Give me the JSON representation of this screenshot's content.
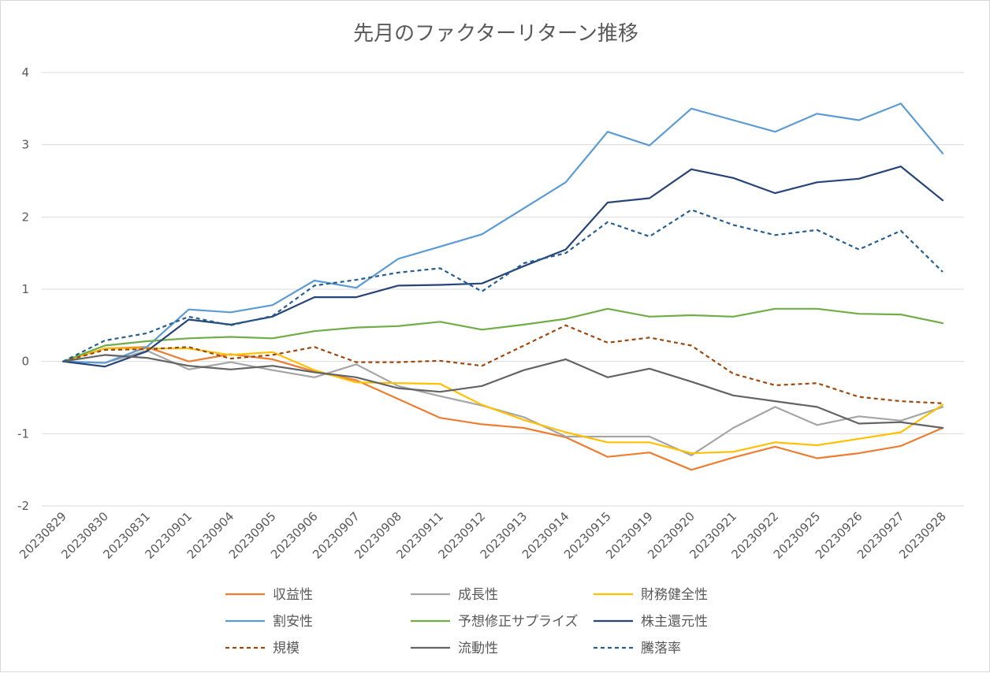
{
  "chart_data": {
    "type": "line",
    "title": "先月のファクターリターン推移",
    "xlabel": "",
    "ylabel": "",
    "ylim": [
      -2,
      4
    ],
    "yticks": [
      "-2",
      "-1",
      "0",
      "1",
      "2",
      "3",
      "4"
    ],
    "grid": true,
    "legend_position": "bottom",
    "categories": [
      "20230829",
      "20230830",
      "20230831",
      "20230901",
      "20230904",
      "20230905",
      "20230906",
      "20230907",
      "20230908",
      "20230911",
      "20230912",
      "20230913",
      "20230914",
      "20230915",
      "20230919",
      "20230920",
      "20230921",
      "20230922",
      "20230925",
      "20230926",
      "20230927",
      "20230928"
    ],
    "series": [
      {
        "name": "収益性",
        "color": "#ED7D31",
        "dash": "solid",
        "values": [
          0,
          0.18,
          0.2,
          0.0,
          0.1,
          0.03,
          -0.14,
          -0.26,
          -0.52,
          -0.78,
          -0.87,
          -0.92,
          -1.05,
          -1.32,
          -1.26,
          -1.5,
          -1.33,
          -1.18,
          -1.34,
          -1.27,
          -1.17,
          -0.92
        ]
      },
      {
        "name": "成長性",
        "color": "#A5A5A5",
        "dash": "solid",
        "values": [
          0,
          -0.02,
          0.15,
          -0.11,
          -0.01,
          -0.12,
          -0.22,
          -0.04,
          -0.34,
          -0.48,
          -0.61,
          -0.77,
          -1.04,
          -1.04,
          -1.04,
          -1.3,
          -0.92,
          -0.63,
          -0.88,
          -0.76,
          -0.82,
          -0.63
        ]
      },
      {
        "name": "財務健全性",
        "color": "#FFC000",
        "dash": "solid",
        "values": [
          0,
          0.18,
          0.18,
          0.18,
          0.09,
          0.13,
          -0.12,
          -0.29,
          -0.3,
          -0.31,
          -0.6,
          -0.81,
          -0.98,
          -1.12,
          -1.12,
          -1.27,
          -1.25,
          -1.12,
          -1.16,
          -1.07,
          -0.98,
          -0.6
        ]
      },
      {
        "name": "割安性",
        "color": "#5B9BD5",
        "dash": "solid",
        "values": [
          0,
          -0.02,
          0.2,
          0.72,
          0.68,
          0.78,
          1.12,
          1.02,
          1.42,
          1.59,
          1.76,
          2.12,
          2.48,
          3.18,
          2.99,
          3.5,
          3.34,
          3.18,
          3.43,
          3.34,
          3.57,
          2.88
        ]
      },
      {
        "name": "予想修正サプライズ",
        "color": "#70AD47",
        "dash": "solid",
        "values": [
          0,
          0.22,
          0.28,
          0.32,
          0.34,
          0.32,
          0.42,
          0.47,
          0.49,
          0.55,
          0.44,
          0.51,
          0.59,
          0.73,
          0.62,
          0.64,
          0.62,
          0.73,
          0.73,
          0.66,
          0.65,
          0.53
        ]
      },
      {
        "name": "株主還元性",
        "color": "#264478",
        "dash": "solid",
        "values": [
          0,
          -0.07,
          0.14,
          0.58,
          0.51,
          0.62,
          0.89,
          0.89,
          1.05,
          1.06,
          1.08,
          1.32,
          1.55,
          2.2,
          2.26,
          2.66,
          2.54,
          2.33,
          2.48,
          2.53,
          2.7,
          2.23
        ]
      },
      {
        "name": "規模",
        "color": "#9E480E",
        "dash": "dashed",
        "values": [
          0,
          0.16,
          0.17,
          0.2,
          0.04,
          0.09,
          0.2,
          -0.01,
          -0.01,
          0.01,
          -0.06,
          0.22,
          0.5,
          0.26,
          0.33,
          0.22,
          -0.17,
          -0.33,
          -0.3,
          -0.49,
          -0.55,
          -0.58
        ]
      },
      {
        "name": "流動性",
        "color": "#636363",
        "dash": "solid",
        "values": [
          0,
          0.09,
          0.05,
          -0.06,
          -0.11,
          -0.06,
          -0.15,
          -0.22,
          -0.37,
          -0.42,
          -0.34,
          -0.12,
          0.03,
          -0.22,
          -0.1,
          -0.28,
          -0.47,
          -0.55,
          -0.63,
          -0.86,
          -0.84,
          -0.92
        ]
      },
      {
        "name": "騰落率",
        "color": "#255E91",
        "dash": "dashed",
        "values": [
          0,
          0.29,
          0.39,
          0.62,
          0.5,
          0.63,
          1.05,
          1.13,
          1.23,
          1.29,
          0.97,
          1.36,
          1.5,
          1.93,
          1.73,
          2.1,
          1.89,
          1.75,
          1.82,
          1.55,
          1.81,
          1.24
        ]
      }
    ]
  }
}
